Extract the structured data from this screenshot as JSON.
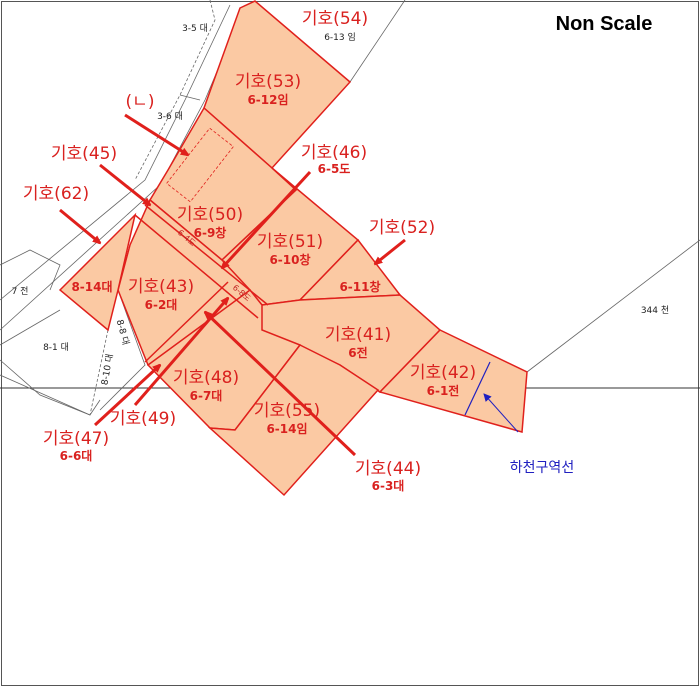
{
  "title": "Non Scale",
  "colors": {
    "parcel_fill": "#fbc9a3",
    "parcel_stroke": "#e0201c",
    "label": "#d9211f",
    "river_line": "#2020c0"
  },
  "parcels": [
    {
      "id": "53",
      "label": "기호(53)",
      "sub": "6-12임"
    },
    {
      "id": "50",
      "label": "기호(50)",
      "sub": "6-9창"
    },
    {
      "id": "51",
      "label": "기호(51)",
      "sub": "6-10창"
    },
    {
      "id": "43",
      "label": "기호(43)",
      "sub": "6-2대"
    },
    {
      "id": "41",
      "label": "기호(41)",
      "sub": "6전"
    },
    {
      "id": "42",
      "label": "기호(42)",
      "sub": "6-1전"
    },
    {
      "id": "48",
      "label": "기호(48)",
      "sub": "6-7대"
    },
    {
      "id": "55",
      "label": "기호(55)",
      "sub": "6-14임"
    }
  ],
  "callouts": [
    {
      "id": "54",
      "label": "기호(54)",
      "sub": "6-13 임"
    },
    {
      "id": "n",
      "label": "(ㄴ)"
    },
    {
      "id": "45",
      "label": "기호(45)"
    },
    {
      "id": "46",
      "label": "기호(46)",
      "sub": "6-5도"
    },
    {
      "id": "62",
      "label": "기호(62)"
    },
    {
      "id": "52",
      "label": "기호(52)"
    },
    {
      "id": "49",
      "label": "기호(49)"
    },
    {
      "id": "47",
      "label": "기호(47)",
      "sub": "6-6대"
    },
    {
      "id": "44",
      "label": "기호(44)",
      "sub": "6-3대"
    }
  ],
  "inner_labels": {
    "p62": "8-14대",
    "p52": "6-11창",
    "road_64": "6-4도",
    "road_68": "6-8도"
  },
  "neighbor_labels": {
    "a": "3-5 대",
    "b": "3-6 대",
    "c": "7 전",
    "d": "8-1 대",
    "e": "8-8 대",
    "f": "8-10 대",
    "g": "344 천"
  },
  "river_label": "하천구역선"
}
